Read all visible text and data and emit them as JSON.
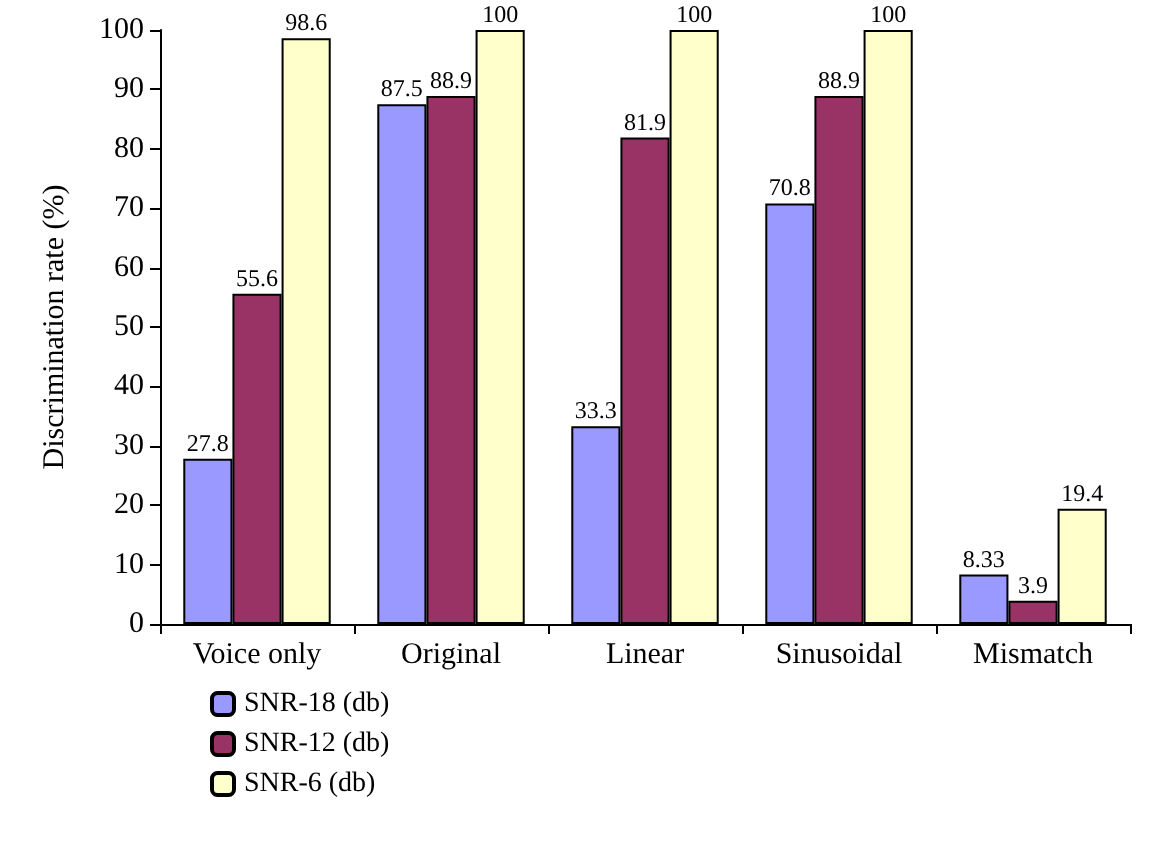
{
  "chart_data": {
    "type": "bar",
    "ylabel": "Discrimination rate (%)",
    "categories": [
      "Voice only",
      "Original",
      "Linear",
      "Sinusoidal",
      "Mismatch"
    ],
    "series": [
      {
        "name": "SNR-18 (db)",
        "color": "#9999ff",
        "values": [
          27.8,
          87.5,
          33.3,
          70.8,
          8.33
        ]
      },
      {
        "name": "SNR-12 (db)",
        "color": "#993366",
        "values": [
          55.6,
          88.9,
          81.9,
          88.9,
          3.9
        ]
      },
      {
        "name": "SNR-6 (db)",
        "color": "#ffffcc",
        "values": [
          98.6,
          100,
          100,
          100,
          19.4
        ]
      }
    ],
    "ylim": [
      0,
      100
    ],
    "yticks": [
      0,
      10,
      20,
      30,
      40,
      50,
      60,
      70,
      80,
      90,
      100
    ],
    "grid": false,
    "legend": "bottom left",
    "data_labels": true
  }
}
